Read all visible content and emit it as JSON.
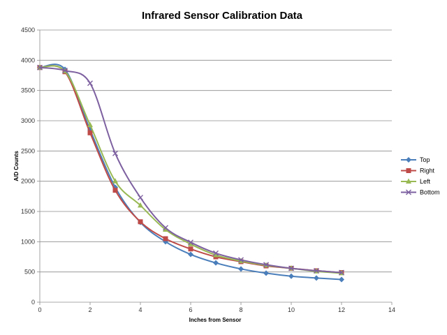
{
  "chart_data": {
    "type": "line",
    "title": "Infrared Sensor Calibration Data",
    "xlabel": "Inches from Sensor",
    "ylabel": "A/D Counts",
    "xlim": [
      0,
      14
    ],
    "ylim": [
      0,
      4500
    ],
    "xticks": [
      0,
      2,
      4,
      6,
      8,
      10,
      12,
      14
    ],
    "yticks": [
      0,
      500,
      1000,
      1500,
      2000,
      2500,
      3000,
      3500,
      4000,
      4500
    ],
    "grid": "horizontal",
    "legend_position": "right",
    "series": [
      {
        "name": "Top",
        "color": "#4a7ebb",
        "marker": "diamond",
        "x": [
          0,
          1,
          2,
          3,
          4,
          5,
          6,
          7,
          8,
          9,
          10,
          11,
          12
        ],
        "y": [
          3880,
          3850,
          2850,
          1900,
          1320,
          1000,
          790,
          650,
          550,
          480,
          430,
          400,
          375
        ]
      },
      {
        "name": "Right",
        "color": "#be4b48",
        "marker": "square",
        "x": [
          0,
          1,
          2,
          3,
          4,
          5,
          6,
          7,
          8,
          9,
          10,
          11,
          12
        ],
        "y": [
          3880,
          3810,
          2800,
          1850,
          1330,
          1050,
          880,
          750,
          670,
          600,
          560,
          520,
          490
        ]
      },
      {
        "name": "Left",
        "color": "#98b954",
        "marker": "triangle",
        "x": [
          0,
          1,
          2,
          3,
          4,
          5,
          6,
          7,
          8,
          9,
          10,
          11,
          12
        ],
        "y": [
          3880,
          3820,
          2930,
          2000,
          1600,
          1200,
          960,
          780,
          680,
          610,
          560,
          510,
          480
        ]
      },
      {
        "name": "Bottom",
        "color": "#7d60a0",
        "marker": "x",
        "x": [
          0,
          1,
          2,
          3,
          4,
          5,
          6,
          7,
          8,
          9,
          10,
          11,
          12
        ],
        "y": [
          3880,
          3830,
          3620,
          2460,
          1730,
          1230,
          990,
          810,
          700,
          620,
          560,
          520,
          490
        ]
      }
    ]
  }
}
